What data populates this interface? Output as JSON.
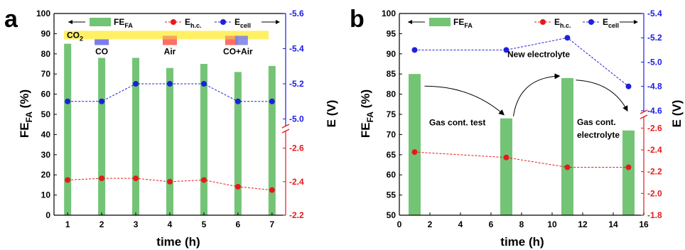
{
  "colors": {
    "bar": "#74c476",
    "e_hc": "#e31a1c",
    "e_cell": "#1f1fdd",
    "band": "#fff066",
    "chip_co": "#7a7ee8",
    "chip_air_top": "#f4a460",
    "chip_air_bottom": "#ff6f61"
  },
  "chart_data": [
    {
      "type": "bar",
      "panel": "a",
      "xlabel": "time (h)",
      "ylabel": "FE",
      "ylabel_sub": "FA",
      "ylabel_unit": " (%)",
      "y2label": "E (V)",
      "xlim": [
        0.6,
        7.4
      ],
      "ylim": [
        0,
        100
      ],
      "xticks": [
        "1",
        "2",
        "3",
        "4",
        "5",
        "6",
        "7"
      ],
      "yticks": [
        "0",
        "10",
        "20",
        "30",
        "40",
        "50",
        "60",
        "70",
        "80",
        "90",
        "100"
      ],
      "categories": [
        1,
        2,
        3,
        4,
        5,
        6,
        7
      ],
      "series": [
        {
          "name": "FE",
          "name_sub": "FA",
          "values": [
            85,
            78,
            78,
            73,
            75,
            71,
            74
          ]
        },
        {
          "name": "E",
          "name_sub": "h.c.",
          "axis": "right-lower",
          "values": [
            -2.41,
            -2.42,
            -2.42,
            -2.4,
            -2.41,
            -2.37,
            -2.35
          ]
        },
        {
          "name": "E",
          "name_sub": "cell",
          "axis": "right-upper",
          "values": [
            -5.1,
            -5.1,
            -5.2,
            -5.2,
            -5.2,
            -5.1,
            -5.1
          ]
        }
      ],
      "y2_upper": {
        "range": [
          -5.6,
          -4.8
        ],
        "ticks": [
          "-5.6",
          "-5.4",
          "-5.2",
          "-5.0"
        ]
      },
      "y2_lower": {
        "range": [
          -2.7,
          -2.2
        ],
        "ticks": [
          "-2.6",
          "-2.4",
          "-2.2"
        ]
      },
      "band_label": "CO",
      "band_label_sub": "2",
      "annotations": [
        "CO",
        "Air",
        "CO+Air"
      ]
    },
    {
      "type": "bar",
      "panel": "b",
      "xlabel": "time (h)",
      "ylabel": "FE",
      "ylabel_sub": "FA",
      "ylabel_unit": " (%)",
      "y2label": "E (V)",
      "xlim": [
        0,
        16
      ],
      "ylim": [
        50,
        100
      ],
      "xticks": [
        "0",
        "2",
        "4",
        "6",
        "8",
        "10",
        "12",
        "14",
        "16"
      ],
      "yticks": [
        "50",
        "55",
        "60",
        "65",
        "70",
        "75",
        "80",
        "85",
        "90",
        "95",
        "100"
      ],
      "categories": [
        1,
        7,
        11,
        15
      ],
      "series": [
        {
          "name": "FE",
          "name_sub": "FA",
          "values": [
            85,
            74,
            84,
            71
          ]
        },
        {
          "name": "E",
          "name_sub": "h.c.",
          "axis": "right-lower",
          "values": [
            -2.38,
            -2.33,
            -2.24,
            -2.24
          ]
        },
        {
          "name": "E",
          "name_sub": "cell",
          "axis": "right-upper",
          "values": [
            -5.1,
            -5.1,
            -5.2,
            -4.8
          ]
        }
      ],
      "y2_upper": {
        "range": [
          -5.4,
          -4.5
        ],
        "ticks": [
          "-5.4",
          "-5.2",
          "-5.0",
          "-4.8",
          "-4.6"
        ]
      },
      "y2_lower": {
        "range": [
          -2.7,
          -1.8
        ],
        "ticks": [
          "-2.6",
          "-2.4",
          "-2.2",
          "-2.0",
          "-1.8"
        ]
      },
      "annotations": [
        "Gas cont. test",
        "New electrolyte",
        "Gas cont.",
        "electrolyte"
      ]
    }
  ]
}
